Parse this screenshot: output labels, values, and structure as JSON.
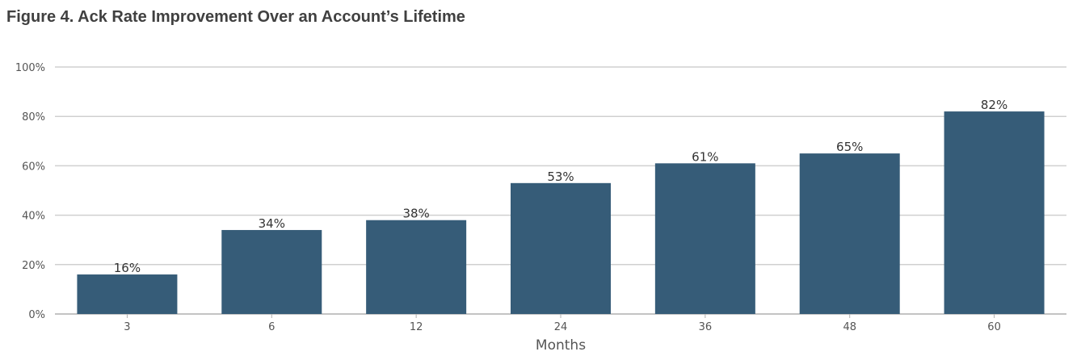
{
  "figure_title": "Figure 4. Ack Rate Improvement Over an Account’s Lifetime",
  "colors": {
    "bar": "#365c78",
    "grid": "#d0d0d0",
    "title": "#404040"
  },
  "chart_data": {
    "type": "bar",
    "title": "",
    "xlabel": "Months",
    "ylabel": "",
    "categories": [
      "3",
      "6",
      "12",
      "24",
      "36",
      "48",
      "60"
    ],
    "values": [
      16,
      34,
      38,
      53,
      61,
      65,
      82
    ],
    "value_labels": [
      "16%",
      "34%",
      "38%",
      "53%",
      "61%",
      "65%",
      "82%"
    ],
    "ylim": [
      0,
      100
    ],
    "yticks": [
      0,
      20,
      40,
      60,
      80,
      100
    ],
    "ytick_labels": [
      "0%",
      "20%",
      "40%",
      "60%",
      "80%",
      "100%"
    ],
    "grid": true,
    "legend": "none"
  }
}
